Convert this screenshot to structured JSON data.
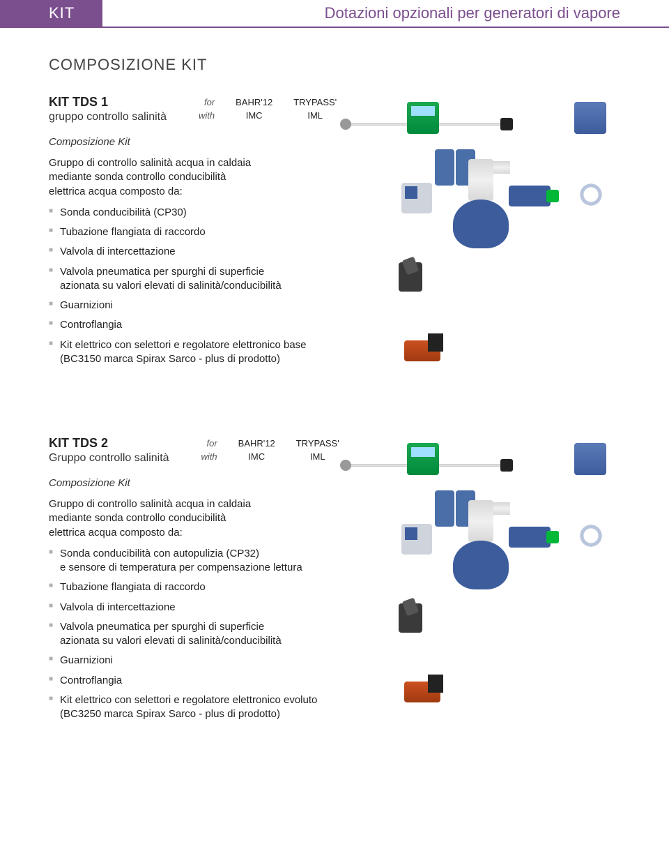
{
  "header": {
    "left": "KIT",
    "right": "Dotazioni opzionali per generatori di vapore"
  },
  "section_title": "COMPOSIZIONE KIT",
  "for_labels": {
    "for": "for",
    "with": "with"
  },
  "for_values": {
    "col1_top": "BAHR'12",
    "col1_bot": "IMC",
    "col2_top": "TRYPASS'",
    "col2_bot": "IML"
  },
  "composition_label": "Composizione Kit",
  "kits": [
    {
      "name": "KIT TDS 1",
      "subtitle": "gruppo controllo salinità",
      "desc_line1": "Gruppo di controllo salinità acqua in caldaia",
      "desc_line2": "mediante sonda controllo conducibilità",
      "desc_line3": "elettrica acqua composto da:",
      "items": [
        "Sonda conducibilità (CP30)",
        "Tubazione flangiata di raccordo",
        "Valvola di intercettazione",
        "Valvola pneumatica per spurghi di superficie\nazionata su valori elevati di salinità/conducibilità",
        "Guarnizioni",
        "Controflangia",
        "Kit elettrico con selettori e regolatore elettronico base\n(BC3150 marca Spirax Sarco - plus di prodotto)"
      ]
    },
    {
      "name": "KIT TDS 2",
      "subtitle": "Gruppo controllo salinità",
      "desc_line1": "Gruppo di controllo salinità acqua in caldaia",
      "desc_line2": "mediante sonda controllo conducibilità",
      "desc_line3": "elettrica acqua composto da:",
      "items": [
        "Sonda conducibilità con autopulizia (CP32)\ne sensore di temperatura per compensazione lettura",
        "Tubazione flangiata di raccordo",
        "Valvola di intercettazione",
        "Valvola pneumatica per spurghi di superficie\nazionata su valori elevati di salinità/conducibilità",
        "Guarnizioni",
        "Controflangia",
        "Kit elettrico con selettori e regolatore elettronico evoluto\n(BC3250 marca Spirax Sarco - plus di prodotto)"
      ]
    }
  ],
  "colors": {
    "brand": "#7b4e8e",
    "blue": "#3c5c9c",
    "green": "#00b838",
    "bullet": "#b0b0b0"
  }
}
